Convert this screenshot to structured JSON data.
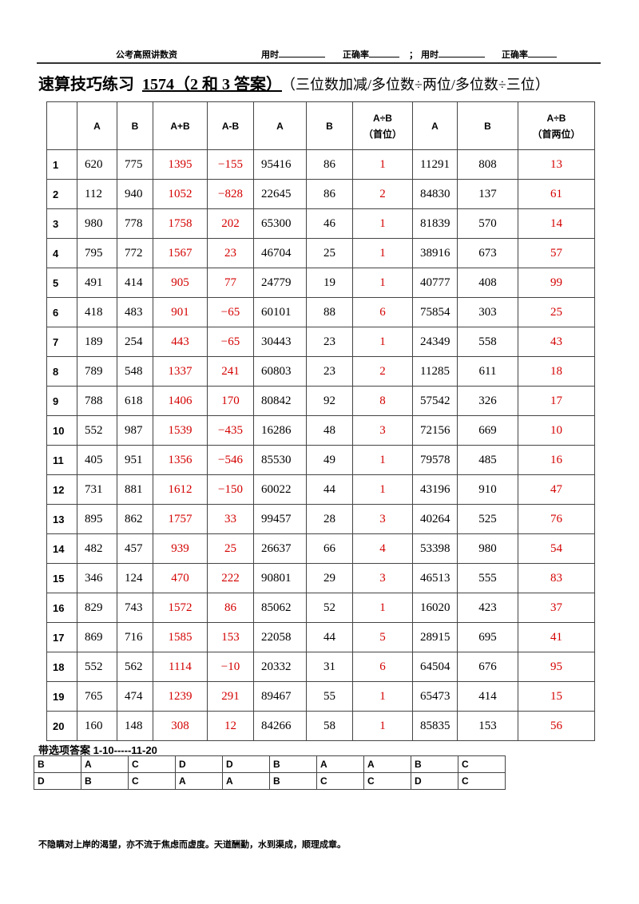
{
  "header": {
    "brand": "公考高照讲数资",
    "time_label_1": "用时",
    "accuracy_label_1": "正确率",
    "separator": "；",
    "time_label_2": "用时",
    "accuracy_label_2": "正确率"
  },
  "title": {
    "main": "速算技巧练习",
    "number": "1574（2 和 3 答案）",
    "subtitle": "（三位数加减/多位数÷两位/多位数÷三位）"
  },
  "table": {
    "headers": [
      "",
      "A",
      "B",
      "A+B",
      "A-B",
      "A",
      "B",
      "A÷B\n（首位）",
      "A",
      "B",
      "A÷B\n（首两位）"
    ],
    "answer_color": "#d40000",
    "rows": [
      [
        "1",
        "620",
        "775",
        "1395",
        "−155",
        "95416",
        "86",
        "1",
        "11291",
        "808",
        "13"
      ],
      [
        "2",
        "112",
        "940",
        "1052",
        "−828",
        "22645",
        "86",
        "2",
        "84830",
        "137",
        "61"
      ],
      [
        "3",
        "980",
        "778",
        "1758",
        "202",
        "65300",
        "46",
        "1",
        "81839",
        "570",
        "14"
      ],
      [
        "4",
        "795",
        "772",
        "1567",
        "23",
        "46704",
        "25",
        "1",
        "38916",
        "673",
        "57"
      ],
      [
        "5",
        "491",
        "414",
        "905",
        "77",
        "24779",
        "19",
        "1",
        "40777",
        "408",
        "99"
      ],
      [
        "6",
        "418",
        "483",
        "901",
        "−65",
        "60101",
        "88",
        "6",
        "75854",
        "303",
        "25"
      ],
      [
        "7",
        "189",
        "254",
        "443",
        "−65",
        "30443",
        "23",
        "1",
        "24349",
        "558",
        "43"
      ],
      [
        "8",
        "789",
        "548",
        "1337",
        "241",
        "60803",
        "23",
        "2",
        "11285",
        "611",
        "18"
      ],
      [
        "9",
        "788",
        "618",
        "1406",
        "170",
        "80842",
        "92",
        "8",
        "57542",
        "326",
        "17"
      ],
      [
        "10",
        "552",
        "987",
        "1539",
        "−435",
        "16286",
        "48",
        "3",
        "72156",
        "669",
        "10"
      ],
      [
        "11",
        "405",
        "951",
        "1356",
        "−546",
        "85530",
        "49",
        "1",
        "79578",
        "485",
        "16"
      ],
      [
        "12",
        "731",
        "881",
        "1612",
        "−150",
        "60022",
        "44",
        "1",
        "43196",
        "910",
        "47"
      ],
      [
        "13",
        "895",
        "862",
        "1757",
        "33",
        "99457",
        "28",
        "3",
        "40264",
        "525",
        "76"
      ],
      [
        "14",
        "482",
        "457",
        "939",
        "25",
        "26637",
        "66",
        "4",
        "53398",
        "980",
        "54"
      ],
      [
        "15",
        "346",
        "124",
        "470",
        "222",
        "90801",
        "29",
        "3",
        "46513",
        "555",
        "83"
      ],
      [
        "16",
        "829",
        "743",
        "1572",
        "86",
        "85062",
        "52",
        "1",
        "16020",
        "423",
        "37"
      ],
      [
        "17",
        "869",
        "716",
        "1585",
        "153",
        "22058",
        "44",
        "5",
        "28915",
        "695",
        "41"
      ],
      [
        "18",
        "552",
        "562",
        "1114",
        "−10",
        "20332",
        "31",
        "6",
        "64504",
        "676",
        "95"
      ],
      [
        "19",
        "765",
        "474",
        "1239",
        "291",
        "89467",
        "55",
        "1",
        "65473",
        "414",
        "15"
      ],
      [
        "20",
        "160",
        "148",
        "308",
        "12",
        "84266",
        "58",
        "1",
        "85835",
        "153",
        "56"
      ]
    ]
  },
  "options": {
    "label": "带选项答案 1-10-----11-20",
    "rows": [
      [
        "B",
        "A",
        "C",
        "D",
        "D",
        "B",
        "A",
        "A",
        "B",
        "C"
      ],
      [
        "D",
        "B",
        "C",
        "A",
        "A",
        "B",
        "C",
        "C",
        "D",
        "C"
      ]
    ]
  },
  "footer": {
    "quote": "不隐瞒对上岸的渴望，亦不流于焦虑而虚度。天道酬勤，水到渠成，顺理成章。"
  }
}
